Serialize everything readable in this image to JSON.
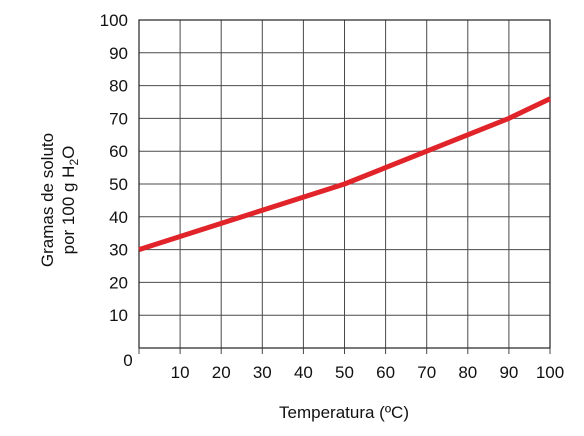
{
  "chart_data": {
    "type": "line",
    "xlabel": "Temperatura (ºC)",
    "ylabel": {
      "line1": "Gramas de soluto",
      "line2_prefix": "por 100 g H",
      "line2_subscript": "2",
      "line2_suffix": "O"
    },
    "xlim": [
      0,
      100
    ],
    "ylim": [
      0,
      100
    ],
    "x_ticks": [
      0,
      10,
      20,
      30,
      40,
      50,
      60,
      70,
      80,
      90,
      100
    ],
    "y_ticks": [
      10,
      20,
      30,
      40,
      50,
      60,
      70,
      80,
      90,
      100
    ],
    "origin_label": "0",
    "grid": true,
    "line_color": "#e0242a",
    "series": [
      {
        "x": [
          0,
          10,
          20,
          30,
          40,
          50,
          60,
          70,
          80,
          90,
          100
        ],
        "y": [
          30,
          34,
          38,
          42,
          46,
          50,
          55,
          60,
          65,
          70,
          76
        ]
      }
    ]
  }
}
